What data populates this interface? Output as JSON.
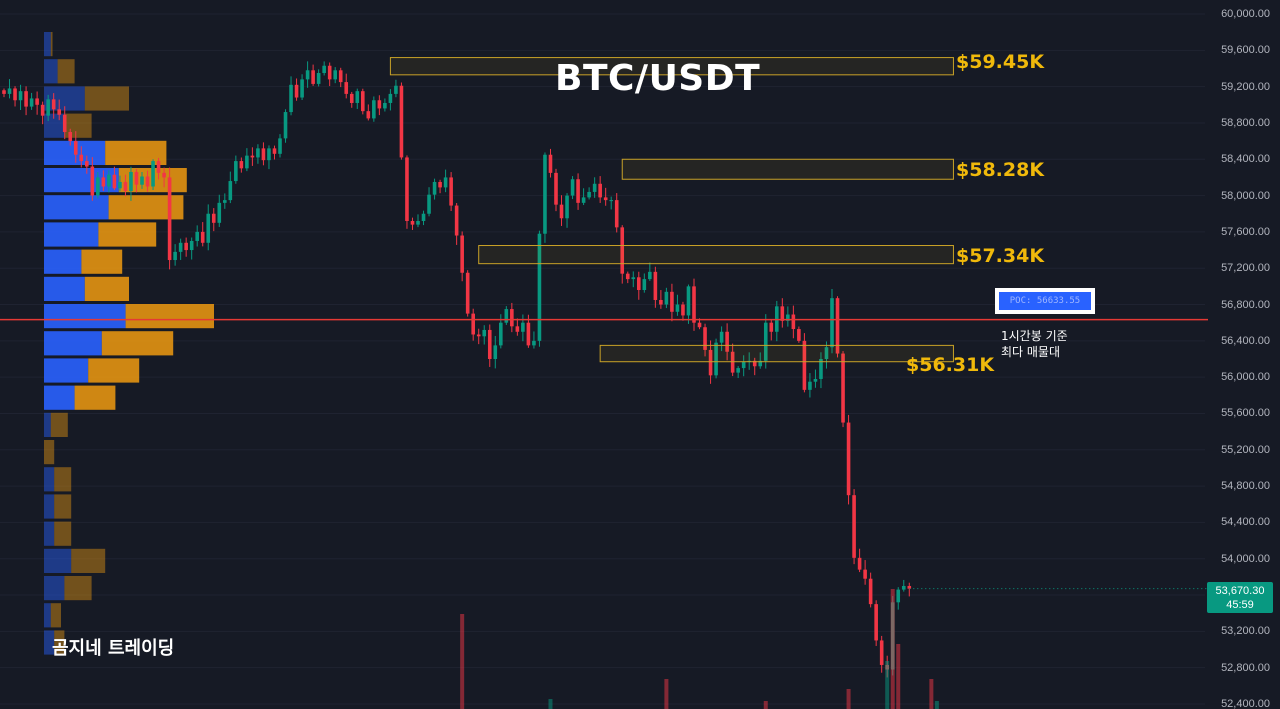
{
  "chart_data": {
    "type": "candlestick",
    "title": "BTC/USDT",
    "symbol": "BTC/USDT",
    "timeframe_note": "1시간봉 기준",
    "y_axis": {
      "ticks": [
        "60,000.00",
        "59,600.00",
        "59,200.00",
        "58,800.00",
        "58,400.00",
        "58,000.00",
        "57,600.00",
        "57,200.00",
        "56,800.00",
        "56,400.00",
        "56,000.00",
        "55,600.00",
        "55,200.00",
        "54,800.00",
        "54,400.00",
        "54,000.00",
        "53,600.00",
        "53,200.00",
        "52,800.00",
        "52,400.00"
      ],
      "ylim": [
        52400,
        60000
      ]
    },
    "levels": [
      {
        "label": "$59.45K",
        "value": 59450
      },
      {
        "label": "$58.28K",
        "value": 58280
      },
      {
        "label": "$57.34K",
        "value": 57340
      },
      {
        "label": "$56.31K",
        "value": 56310
      }
    ],
    "poc": {
      "label": "POC: 56633.55",
      "value": 56633.55,
      "note_line1": "1시간봉 기준",
      "note_line2": "최다 매물대"
    },
    "current_price": {
      "price": "53,670.30",
      "countdown": "45:59",
      "value": 53670.3
    },
    "annotations": {
      "watermark": "곰지네 트레이딩"
    },
    "colors": {
      "up": "#089981",
      "down": "#f23645",
      "level": "#f0b90b",
      "poc_line": "#e53935",
      "vp_buy": "#2962ff",
      "vp_sell": "#e39412"
    },
    "closes": [
      59120,
      59180,
      59050,
      59150,
      58980,
      59070,
      59000,
      58880,
      59060,
      58950,
      58890,
      58700,
      58600,
      58450,
      58380,
      58320,
      58000,
      58200,
      58100,
      58230,
      58080,
      58150,
      58050,
      58260,
      58120,
      58210,
      58100,
      58380,
      58250,
      58200,
      57290,
      57380,
      57480,
      57400,
      57500,
      57600,
      57480,
      57800,
      57700,
      57920,
      57950,
      58160,
      58380,
      58300,
      58440,
      58420,
      58520,
      58390,
      58520,
      58460,
      58630,
      58920,
      59220,
      59080,
      59280,
      59380,
      59230,
      59350,
      59430,
      59280,
      59380,
      59250,
      59120,
      59020,
      59150,
      58930,
      58850,
      59050,
      58960,
      59020,
      59120,
      59210,
      58420,
      57720,
      57680,
      57720,
      57800,
      58010,
      58150,
      58090,
      58200,
      57890,
      57560,
      57150,
      56700,
      56470,
      56450,
      56520,
      56200,
      56350,
      56600,
      56750,
      56560,
      56500,
      56600,
      56350,
      56400,
      57580,
      58450,
      58250,
      57900,
      57750,
      58000,
      58180,
      57920,
      57980,
      58040,
      58130,
      57980,
      57950,
      57950,
      57650,
      57140,
      57080,
      57100,
      56960,
      57080,
      57160,
      56850,
      56800,
      56940,
      56720,
      56800,
      56680,
      57000,
      56600,
      56550,
      56300,
      56020,
      56380,
      56500,
      56280,
      56050,
      56100,
      56170,
      56180,
      56120,
      56180,
      56600,
      56500,
      56780,
      56620,
      56690,
      56530,
      56400,
      55860,
      55950,
      55980,
      56200,
      56330,
      56870,
      56260,
      55500,
      54700,
      54010,
      53880,
      53780,
      53500,
      53100,
      52830,
      52780,
      53520,
      53660,
      53700,
      53670
    ],
    "volume_profile": [
      {
        "buy": 0.02,
        "sell": 0.005
      },
      {
        "buy": 0.04,
        "sell": 0.05
      },
      {
        "buy": 0.12,
        "sell": 0.13
      },
      {
        "buy": 0.06,
        "sell": 0.08
      },
      {
        "buy": 0.18,
        "sell": 0.18
      },
      {
        "buy": 0.22,
        "sell": 0.2
      },
      {
        "buy": 0.19,
        "sell": 0.22
      },
      {
        "buy": 0.16,
        "sell": 0.17
      },
      {
        "buy": 0.11,
        "sell": 0.12
      },
      {
        "buy": 0.12,
        "sell": 0.13
      },
      {
        "buy": 0.24,
        "sell": 0.26
      },
      {
        "buy": 0.17,
        "sell": 0.21
      },
      {
        "buy": 0.13,
        "sell": 0.15
      },
      {
        "buy": 0.09,
        "sell": 0.12
      },
      {
        "buy": 0.02,
        "sell": 0.05
      },
      {
        "buy": 0.0,
        "sell": 0.03
      },
      {
        "buy": 0.03,
        "sell": 0.05
      },
      {
        "buy": 0.03,
        "sell": 0.05
      },
      {
        "buy": 0.03,
        "sell": 0.05
      },
      {
        "buy": 0.08,
        "sell": 0.1
      },
      {
        "buy": 0.06,
        "sell": 0.08
      },
      {
        "buy": 0.02,
        "sell": 0.03
      },
      {
        "buy": 0.03,
        "sell": 0.03
      }
    ],
    "zones": [
      {
        "top": 59520,
        "bottom": 59330,
        "from_candle": 70,
        "to_candle": 172
      },
      {
        "top": 58400,
        "bottom": 58180,
        "from_candle": 112,
        "to_candle": 172
      },
      {
        "top": 57450,
        "bottom": 57250,
        "from_candle": 86,
        "to_candle": 172
      },
      {
        "top": 56350,
        "bottom": 56170,
        "from_candle": 108,
        "to_candle": 172
      }
    ]
  }
}
